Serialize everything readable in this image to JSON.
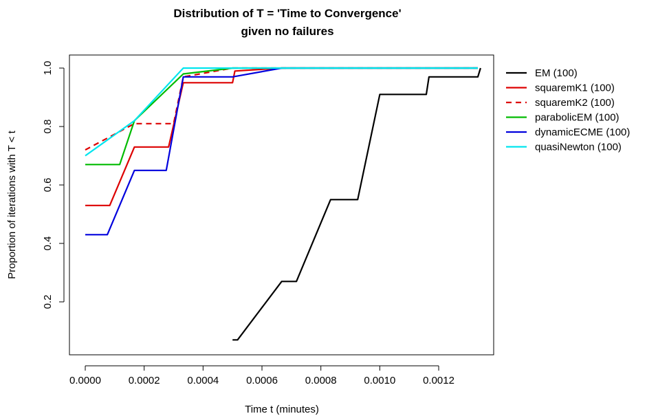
{
  "chart_data": {
    "type": "line",
    "title": "Distribution of T = 'Time to Convergence'",
    "subtitle": "given no failures",
    "xlabel": "Time t (minutes)",
    "ylabel": "Proportion of iterations with T < t",
    "xlim": [
      0,
      0.00135
    ],
    "ylim": [
      0.06,
      1.0
    ],
    "x_ticks": [
      0.0,
      0.0002,
      0.0004,
      0.0006,
      0.0008,
      0.001,
      0.0012
    ],
    "x_tick_labels": [
      "0.0000",
      "0.0002",
      "0.0004",
      "0.0006",
      "0.0008",
      "0.0010",
      "0.0012"
    ],
    "y_ticks": [
      0.2,
      0.4,
      0.6,
      0.8,
      1.0
    ],
    "y_tick_labels": [
      "0.2",
      "0.4",
      "0.6",
      "0.8",
      "1.0"
    ],
    "grid": false,
    "legend_position": "right",
    "series": [
      {
        "name": "EM (100)",
        "color": "#000000",
        "dash": "solid",
        "points": [
          [
            0.0005,
            0.07
          ],
          [
            0.000517,
            0.07
          ],
          [
            0.000667,
            0.27
          ],
          [
            0.000717,
            0.27
          ],
          [
            0.000833,
            0.55
          ],
          [
            0.000925,
            0.55
          ],
          [
            0.001,
            0.91
          ],
          [
            0.001158,
            0.91
          ],
          [
            0.001167,
            0.97
          ],
          [
            0.001333,
            0.97
          ],
          [
            0.001342,
            1.0
          ]
        ]
      },
      {
        "name": "squaremK1 (100)",
        "color": "#dd0000",
        "dash": "solid",
        "points": [
          [
            0.0,
            0.53
          ],
          [
            8.3e-05,
            0.53
          ],
          [
            0.000167,
            0.73
          ],
          [
            0.000283,
            0.73
          ],
          [
            0.000333,
            0.95
          ],
          [
            0.0005,
            0.95
          ],
          [
            0.000508,
            0.99
          ],
          [
            0.000667,
            1.0
          ],
          [
            0.001333,
            1.0
          ]
        ]
      },
      {
        "name": "squaremK2 (100)",
        "color": "#dd0000",
        "dash": "dashed",
        "points": [
          [
            0.0,
            0.72
          ],
          [
            0.000167,
            0.81
          ],
          [
            0.0003,
            0.81
          ],
          [
            0.000333,
            0.97
          ],
          [
            0.0005,
            1.0
          ],
          [
            0.001333,
            1.0
          ]
        ]
      },
      {
        "name": "parabolicEM (100)",
        "color": "#00bb00",
        "dash": "solid",
        "points": [
          [
            0.0,
            0.67
          ],
          [
            0.000117,
            0.67
          ],
          [
            0.000167,
            0.82
          ],
          [
            0.000333,
            0.98
          ],
          [
            0.0005,
            1.0
          ],
          [
            0.001333,
            1.0
          ]
        ]
      },
      {
        "name": "dynamicECME (100)",
        "color": "#0000dd",
        "dash": "solid",
        "points": [
          [
            0.0,
            0.43
          ],
          [
            7.5e-05,
            0.43
          ],
          [
            0.000167,
            0.65
          ],
          [
            0.000275,
            0.65
          ],
          [
            0.000333,
            0.97
          ],
          [
            0.0005,
            0.97
          ],
          [
            0.000667,
            1.0
          ],
          [
            0.001333,
            1.0
          ]
        ]
      },
      {
        "name": "quasiNewton (100)",
        "color": "#00e5ee",
        "dash": "solid",
        "points": [
          [
            0.0,
            0.7
          ],
          [
            0.000167,
            0.82
          ],
          [
            0.000333,
            1.0
          ],
          [
            0.001333,
            1.0
          ]
        ]
      }
    ]
  }
}
